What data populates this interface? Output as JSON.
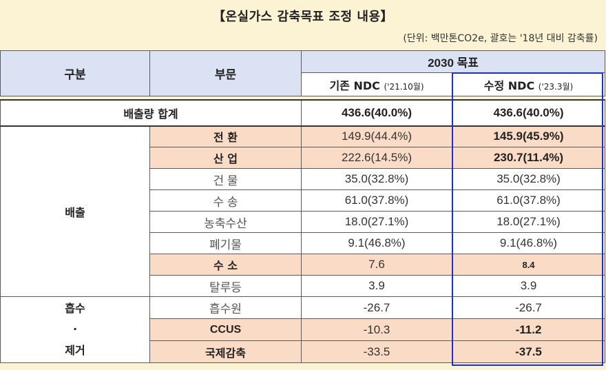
{
  "title": "【온실가스 감축목표 조정 내용】",
  "unit_note": "(단위: 백만톤CO2e, 괄호는 '18년 대비 감축률)",
  "header": {
    "category": "구분",
    "sector": "부문",
    "target": "2030 목표",
    "existing": "기존 NDC",
    "existing_date": "('21.10월)",
    "revised": "수정 NDC",
    "revised_date": "('23.3월)"
  },
  "total": {
    "label": "배출량 합계",
    "existing": "436.6(40.0%)",
    "revised": "436.6(40.0%)"
  },
  "groups": {
    "emission": "배출",
    "absorb_line1": "흡수",
    "absorb_line2": "·",
    "absorb_line3": "제거"
  },
  "rows": [
    {
      "sector": "전 환",
      "existing": "149.9(44.4%)",
      "revised": "145.9(45.9%)"
    },
    {
      "sector": "산 업",
      "existing": "222.6(14.5%)",
      "revised": "230.7(11.4%)"
    },
    {
      "sector": "건 물",
      "existing": "35.0(32.8%)",
      "revised": "35.0(32.8%)"
    },
    {
      "sector": "수 송",
      "existing": "61.0(37.8%)",
      "revised": "61.0(37.8%)"
    },
    {
      "sector": "농축수산",
      "existing": "18.0(27.1%)",
      "revised": "18.0(27.1%)"
    },
    {
      "sector": "폐기물",
      "existing": "9.1(46.8%)",
      "revised": "9.1(46.8%)"
    },
    {
      "sector": "수 소",
      "existing": "7.6",
      "revised": "8.4"
    },
    {
      "sector": "탈루등",
      "existing": "3.9",
      "revised": "3.9"
    },
    {
      "sector": "흡수원",
      "existing": "-26.7",
      "revised": "-26.7"
    },
    {
      "sector": "CCUS",
      "existing": "-10.3",
      "revised": "-11.2"
    },
    {
      "sector": "국제감축",
      "existing": "-33.5",
      "revised": "-37.5"
    }
  ]
}
